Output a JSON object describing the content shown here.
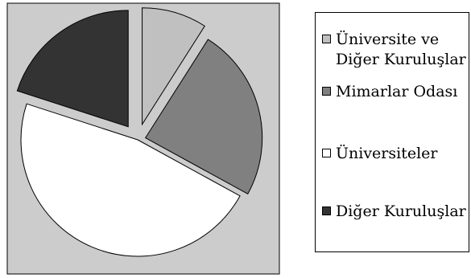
{
  "chart_data": {
    "type": "pie",
    "exploded": true,
    "series": [
      {
        "name": "Üniversite ve\nDiğer Kuruluşlar",
        "value": 9,
        "color": "#c0c0c0"
      },
      {
        "name": "Mimarlar Odası",
        "value": 24,
        "color": "#808080"
      },
      {
        "name": "Üniversiteler",
        "value": 47,
        "color": "#ffffff"
      },
      {
        "name": "Diğer Kuruluşlar",
        "value": 20,
        "color": "#333333"
      }
    ],
    "background_color": "#cccccc",
    "legend_position": "right",
    "grid": false
  }
}
